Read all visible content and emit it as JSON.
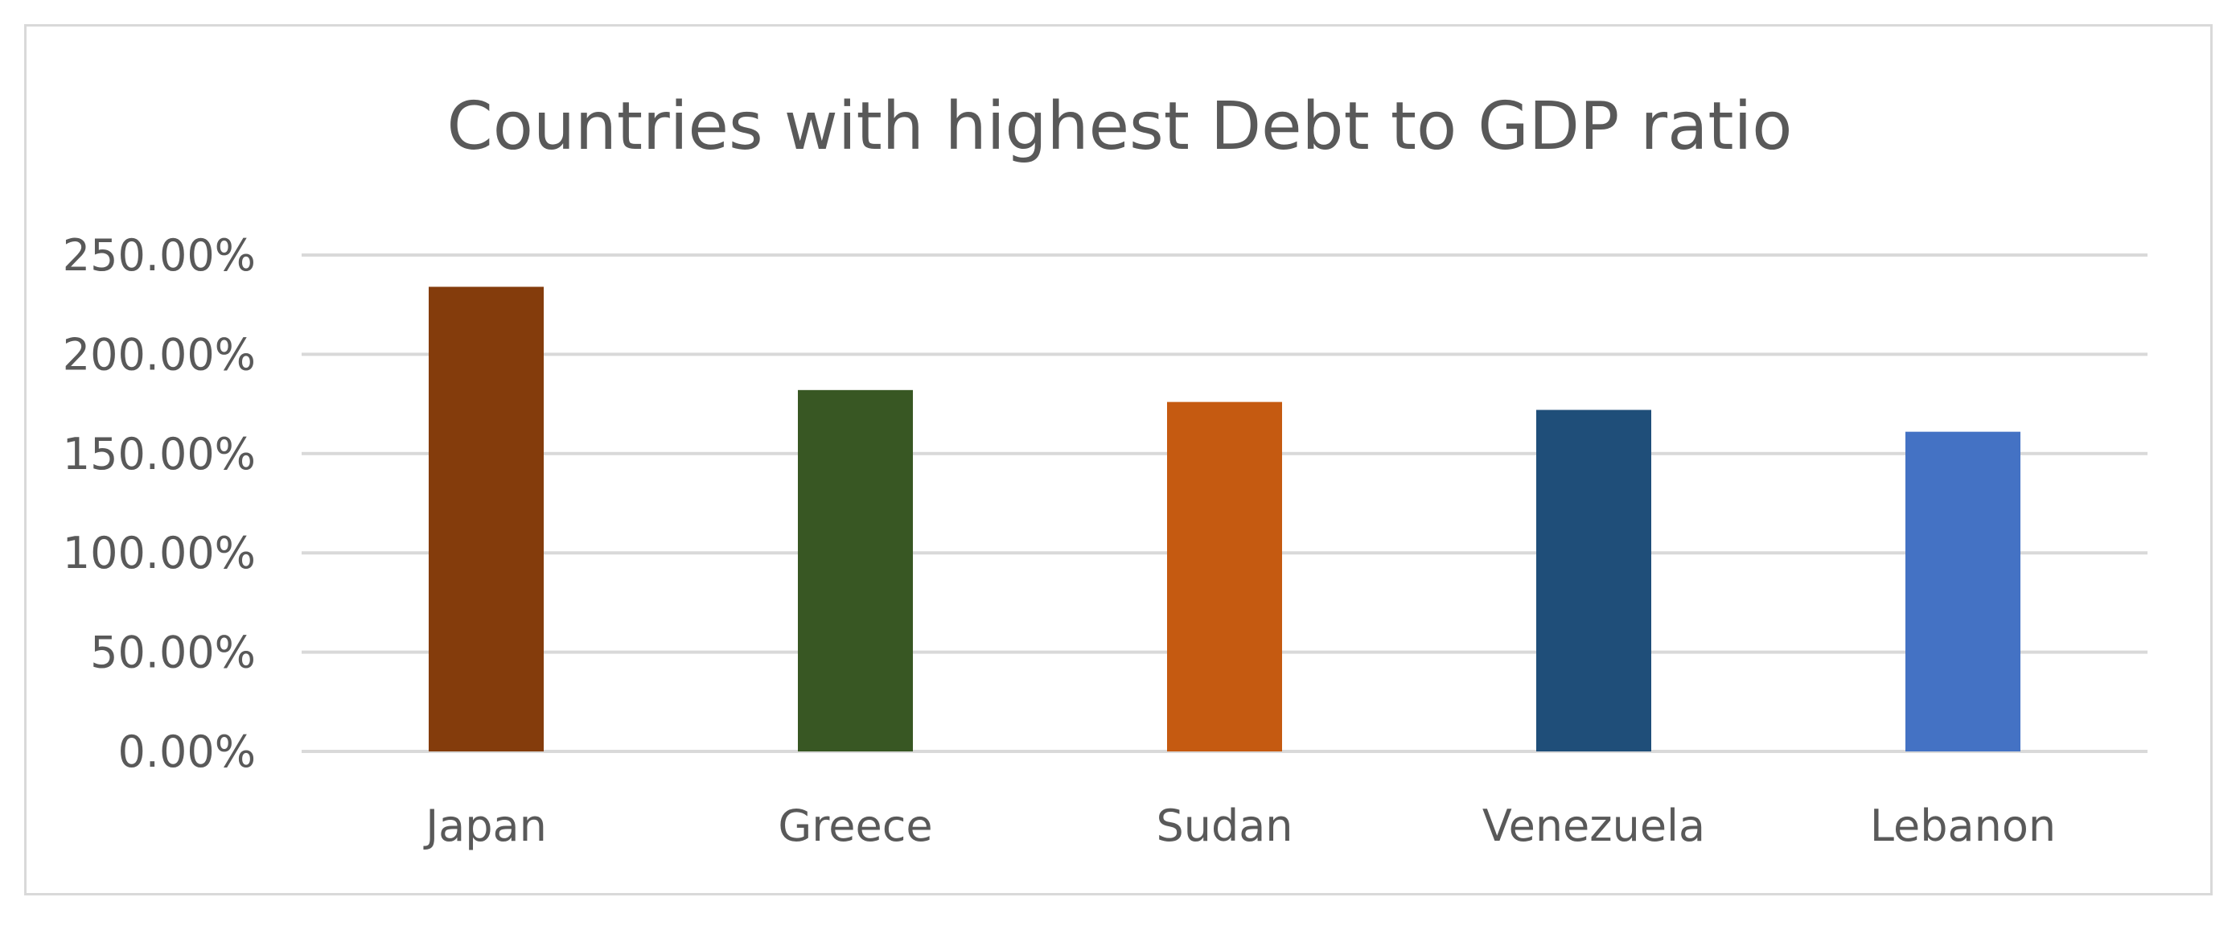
{
  "chart_data": {
    "type": "bar",
    "title": "Countries with highest Debt to GDP ratio",
    "xlabel": "",
    "ylabel": "",
    "categories": [
      "Japan",
      "Greece",
      "Sudan",
      "Venezuela",
      "Lebanon"
    ],
    "values": [
      234,
      182,
      176,
      172,
      161
    ],
    "value_format": "percent_2dp",
    "ylim": [
      0,
      250
    ],
    "yticks": [
      0,
      50,
      100,
      150,
      200,
      250
    ],
    "ytick_labels": [
      "0.00%",
      "50.00%",
      "100.00%",
      "150.00%",
      "200.00%",
      "250.00%"
    ],
    "bar_colors": [
      "#843c0c",
      "#385723",
      "#c55a11",
      "#1f4e79",
      "#4472c4"
    ],
    "gridlines": true,
    "grid_color": "#d9d9d9",
    "legend": "none"
  }
}
